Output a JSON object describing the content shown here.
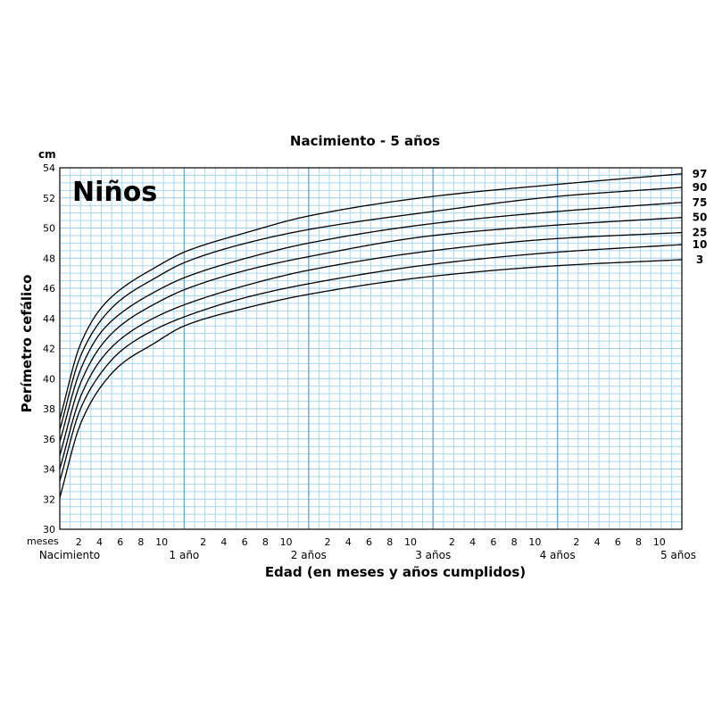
{
  "chart_data": {
    "type": "line",
    "title": "Nacimiento - 5 años",
    "subtitle": "Niños",
    "ylabel": "Perímetro cefálico",
    "yunit": "cm",
    "xlabel": "Edad (en meses y años cumplidos)",
    "xlim": [
      0,
      60
    ],
    "ylim": [
      30,
      54
    ],
    "grid": true,
    "y_ticks": [
      "30",
      "32",
      "34",
      "36",
      "38",
      "40",
      "42",
      "44",
      "46",
      "48",
      "50",
      "52",
      "54"
    ],
    "month_ticks": [
      "2",
      "4",
      "6",
      "8",
      "10"
    ],
    "months_label": "meses",
    "age_labels": [
      "Nacimiento",
      "1 año",
      "2 años",
      "3 años",
      "4 años",
      "5 años"
    ],
    "x_months": [
      0,
      2,
      4,
      6,
      9,
      12,
      18,
      24,
      36,
      48,
      60
    ],
    "series": [
      {
        "name": "97",
        "values": [
          37.3,
          42.3,
          44.7,
          46.0,
          47.3,
          48.4,
          49.7,
          50.8,
          52.1,
          52.9,
          53.6
        ]
      },
      {
        "name": "90",
        "values": [
          36.6,
          41.5,
          43.9,
          45.3,
          46.6,
          47.7,
          49.0,
          49.9,
          51.1,
          52.1,
          52.7
        ]
      },
      {
        "name": "75",
        "values": [
          35.8,
          40.6,
          43.1,
          44.4,
          45.7,
          46.7,
          48.0,
          49.0,
          50.3,
          51.1,
          51.7
        ]
      },
      {
        "name": "50",
        "values": [
          34.9,
          39.7,
          42.2,
          43.6,
          44.9,
          45.9,
          47.2,
          48.1,
          49.5,
          50.2,
          50.7
        ]
      },
      {
        "name": "25",
        "values": [
          34.0,
          38.8,
          41.3,
          42.7,
          44.0,
          44.9,
          46.2,
          47.2,
          48.5,
          49.3,
          49.7
        ]
      },
      {
        "name": "10",
        "values": [
          33.2,
          38.0,
          40.4,
          41.9,
          43.2,
          44.1,
          45.4,
          46.3,
          47.6,
          48.4,
          48.9
        ]
      },
      {
        "name": "3",
        "values": [
          32.1,
          37.0,
          39.5,
          41.0,
          42.3,
          43.5,
          44.7,
          45.6,
          46.8,
          47.5,
          47.9
        ]
      }
    ]
  }
}
